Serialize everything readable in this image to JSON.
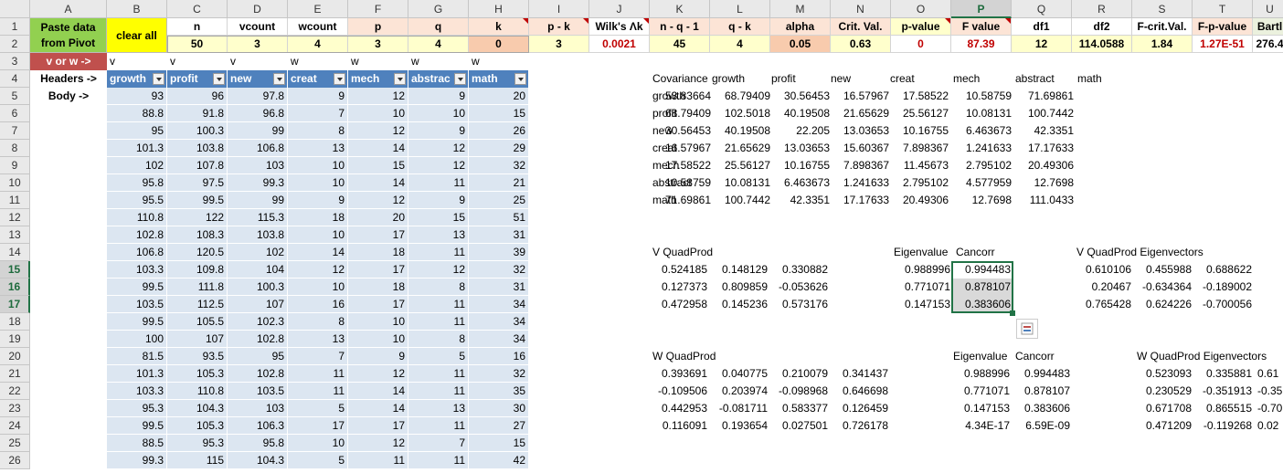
{
  "columns": [
    "A",
    "B",
    "C",
    "D",
    "E",
    "F",
    "G",
    "H",
    "I",
    "J",
    "K",
    "L",
    "M",
    "N",
    "O",
    "P",
    "Q",
    "R",
    "S",
    "T",
    "U"
  ],
  "selected_column": "P",
  "row_numbers": [
    "1",
    "2",
    "3",
    "4",
    "5",
    "6",
    "7",
    "8",
    "9",
    "10",
    "11",
    "12",
    "13",
    "14",
    "15",
    "16",
    "17",
    "18",
    "19",
    "20",
    "21",
    "22",
    "23",
    "24",
    "25",
    "26"
  ],
  "selected_rows": [
    "15",
    "16",
    "17"
  ],
  "buttons": {
    "paste": "Paste data from Pivot",
    "clear": "clear all"
  },
  "params": {
    "headers": [
      "n",
      "vcount",
      "wcount",
      "p",
      "q",
      "k",
      "p - k",
      "Wilk's Λk",
      "n - q - 1",
      "q - k",
      "alpha",
      "Crit. Val.",
      "p-value",
      "F value",
      "df1",
      "df2",
      "F-crit.Val.",
      "F-p-value",
      "Bartl"
    ],
    "values": [
      "50",
      "3",
      "4",
      "3",
      "4",
      "0",
      "3",
      "0.0021",
      "45",
      "4",
      "0.05",
      "0.63",
      "0",
      "87.39",
      "12",
      "114.0588",
      "1.84",
      "1.27E-51",
      "276.4"
    ]
  },
  "labels": {
    "vorw": "v or w ->",
    "headers": "Headers ->",
    "body": "Body ->"
  },
  "vw_flags": [
    "v",
    "v",
    "v",
    "w",
    "w",
    "w",
    "w"
  ],
  "data_headers": [
    "growth",
    "profit",
    "new",
    "creat",
    "mech",
    "abstrac",
    "math"
  ],
  "data_rows": [
    [
      "93",
      "96",
      "97.8",
      "9",
      "12",
      "9",
      "20"
    ],
    [
      "88.8",
      "91.8",
      "96.8",
      "7",
      "10",
      "10",
      "15"
    ],
    [
      "95",
      "100.3",
      "99",
      "8",
      "12",
      "9",
      "26"
    ],
    [
      "101.3",
      "103.8",
      "106.8",
      "13",
      "14",
      "12",
      "29"
    ],
    [
      "102",
      "107.8",
      "103",
      "10",
      "15",
      "12",
      "32"
    ],
    [
      "95.8",
      "97.5",
      "99.3",
      "10",
      "14",
      "11",
      "21"
    ],
    [
      "95.5",
      "99.5",
      "99",
      "9",
      "12",
      "9",
      "25"
    ],
    [
      "110.8",
      "122",
      "115.3",
      "18",
      "20",
      "15",
      "51"
    ],
    [
      "102.8",
      "108.3",
      "103.8",
      "10",
      "17",
      "13",
      "31"
    ],
    [
      "106.8",
      "120.5",
      "102",
      "14",
      "18",
      "11",
      "39"
    ],
    [
      "103.3",
      "109.8",
      "104",
      "12",
      "17",
      "12",
      "32"
    ],
    [
      "99.5",
      "111.8",
      "100.3",
      "10",
      "18",
      "8",
      "31"
    ],
    [
      "103.5",
      "112.5",
      "107",
      "16",
      "17",
      "11",
      "34"
    ],
    [
      "99.5",
      "105.5",
      "102.3",
      "8",
      "10",
      "11",
      "34"
    ],
    [
      "100",
      "107",
      "102.8",
      "13",
      "10",
      "8",
      "34"
    ],
    [
      "81.5",
      "93.5",
      "95",
      "7",
      "9",
      "5",
      "16"
    ],
    [
      "101.3",
      "105.3",
      "102.8",
      "11",
      "12",
      "11",
      "32"
    ],
    [
      "103.3",
      "110.8",
      "103.5",
      "11",
      "14",
      "11",
      "35"
    ],
    [
      "95.3",
      "104.3",
      "103",
      "5",
      "14",
      "13",
      "30"
    ],
    [
      "99.5",
      "105.3",
      "106.3",
      "17",
      "17",
      "11",
      "27"
    ],
    [
      "88.5",
      "95.3",
      "95.8",
      "10",
      "12",
      "7",
      "15"
    ],
    [
      "99.3",
      "115",
      "104.3",
      "5",
      "11",
      "11",
      "42"
    ]
  ],
  "covariance": {
    "title": "Covariance",
    "headers": [
      "growth",
      "profit",
      "new",
      "creat",
      "mech",
      "abstract",
      "math"
    ],
    "rows": [
      {
        "label": "growth",
        "values": [
          "53.83664",
          "68.79409",
          "30.56453",
          "16.57967",
          "17.58522",
          "10.58759",
          "71.69861"
        ]
      },
      {
        "label": "profit",
        "values": [
          "68.79409",
          "102.5018",
          "40.19508",
          "21.65629",
          "25.56127",
          "10.08131",
          "100.7442"
        ]
      },
      {
        "label": "new",
        "values": [
          "30.56453",
          "40.19508",
          "22.205",
          "13.03653",
          "10.16755",
          "6.463673",
          "42.3351"
        ]
      },
      {
        "label": "creat",
        "values": [
          "16.57967",
          "21.65629",
          "13.03653",
          "15.60367",
          "7.898367",
          "1.241633",
          "17.17633"
        ]
      },
      {
        "label": "mech",
        "values": [
          "17.58522",
          "25.56127",
          "10.16755",
          "7.898367",
          "11.45673",
          "2.795102",
          "20.49306"
        ]
      },
      {
        "label": "abstract",
        "values": [
          "10.58759",
          "10.08131",
          "6.463673",
          "1.241633",
          "2.795102",
          "4.577959",
          "12.7698"
        ]
      },
      {
        "label": "math",
        "values": [
          "71.69861",
          "100.7442",
          "42.3351",
          "17.17633",
          "20.49306",
          "12.7698",
          "111.0433"
        ]
      }
    ]
  },
  "v_quadprod": {
    "title": "V QuadProd",
    "rows": [
      [
        "0.524185",
        "0.148129",
        "0.330882"
      ],
      [
        "0.127373",
        "0.809859",
        "-0.053626"
      ],
      [
        "0.472958",
        "0.145236",
        "0.573176"
      ]
    ]
  },
  "v_eigen": {
    "eig_title": "Eigenvalue",
    "cancorr_title": "Cancorr",
    "eig": [
      "0.988996",
      "0.771071",
      "0.147153"
    ],
    "cancorr": [
      "0.994483",
      "0.878107",
      "0.383606"
    ]
  },
  "v_eigenvectors": {
    "title": "V QuadProd Eigenvectors",
    "rows": [
      [
        "0.610106",
        "0.455988",
        "0.688622"
      ],
      [
        "0.20467",
        "-0.634364",
        "-0.189002"
      ],
      [
        "0.765428",
        "0.624226",
        "-0.700056"
      ]
    ]
  },
  "w_quadprod": {
    "title": "W QuadProd",
    "rows": [
      [
        "0.393691",
        "0.040775",
        "0.210079",
        "0.341437"
      ],
      [
        "-0.109506",
        "0.203974",
        "-0.098968",
        "0.646698"
      ],
      [
        "0.442953",
        "-0.081711",
        "0.583377",
        "0.126459"
      ],
      [
        "0.116091",
        "0.193654",
        "0.027501",
        "0.726178"
      ]
    ]
  },
  "w_eigen": {
    "eig_title": "Eigenvalue",
    "cancorr_title": "Cancorr",
    "eig": [
      "0.988996",
      "0.771071",
      "0.147153",
      "4.34E-17"
    ],
    "cancorr": [
      "0.994483",
      "0.878107",
      "0.383606",
      "6.59E-09"
    ]
  },
  "w_eigenvectors": {
    "title": "W QuadProd Eigenvectors",
    "rows": [
      [
        "0.523093",
        "0.335881",
        "0.61"
      ],
      [
        "0.230529",
        "-0.351913",
        "-0.35"
      ],
      [
        "0.671708",
        "0.865515",
        "-0.70"
      ],
      [
        "0.471209",
        "-0.119268",
        "0.02"
      ]
    ]
  },
  "colors": {
    "param_header": "#fce4d6",
    "param_value": "#ffffcc",
    "orange": "#f8cbad",
    "button_green": "#92d050",
    "button_yellow": "#ffff00",
    "data_body": "#dce6f1",
    "table_header": "#4f81bd",
    "red_label": "#c0504d",
    "dark_red_text": "#c00000"
  }
}
